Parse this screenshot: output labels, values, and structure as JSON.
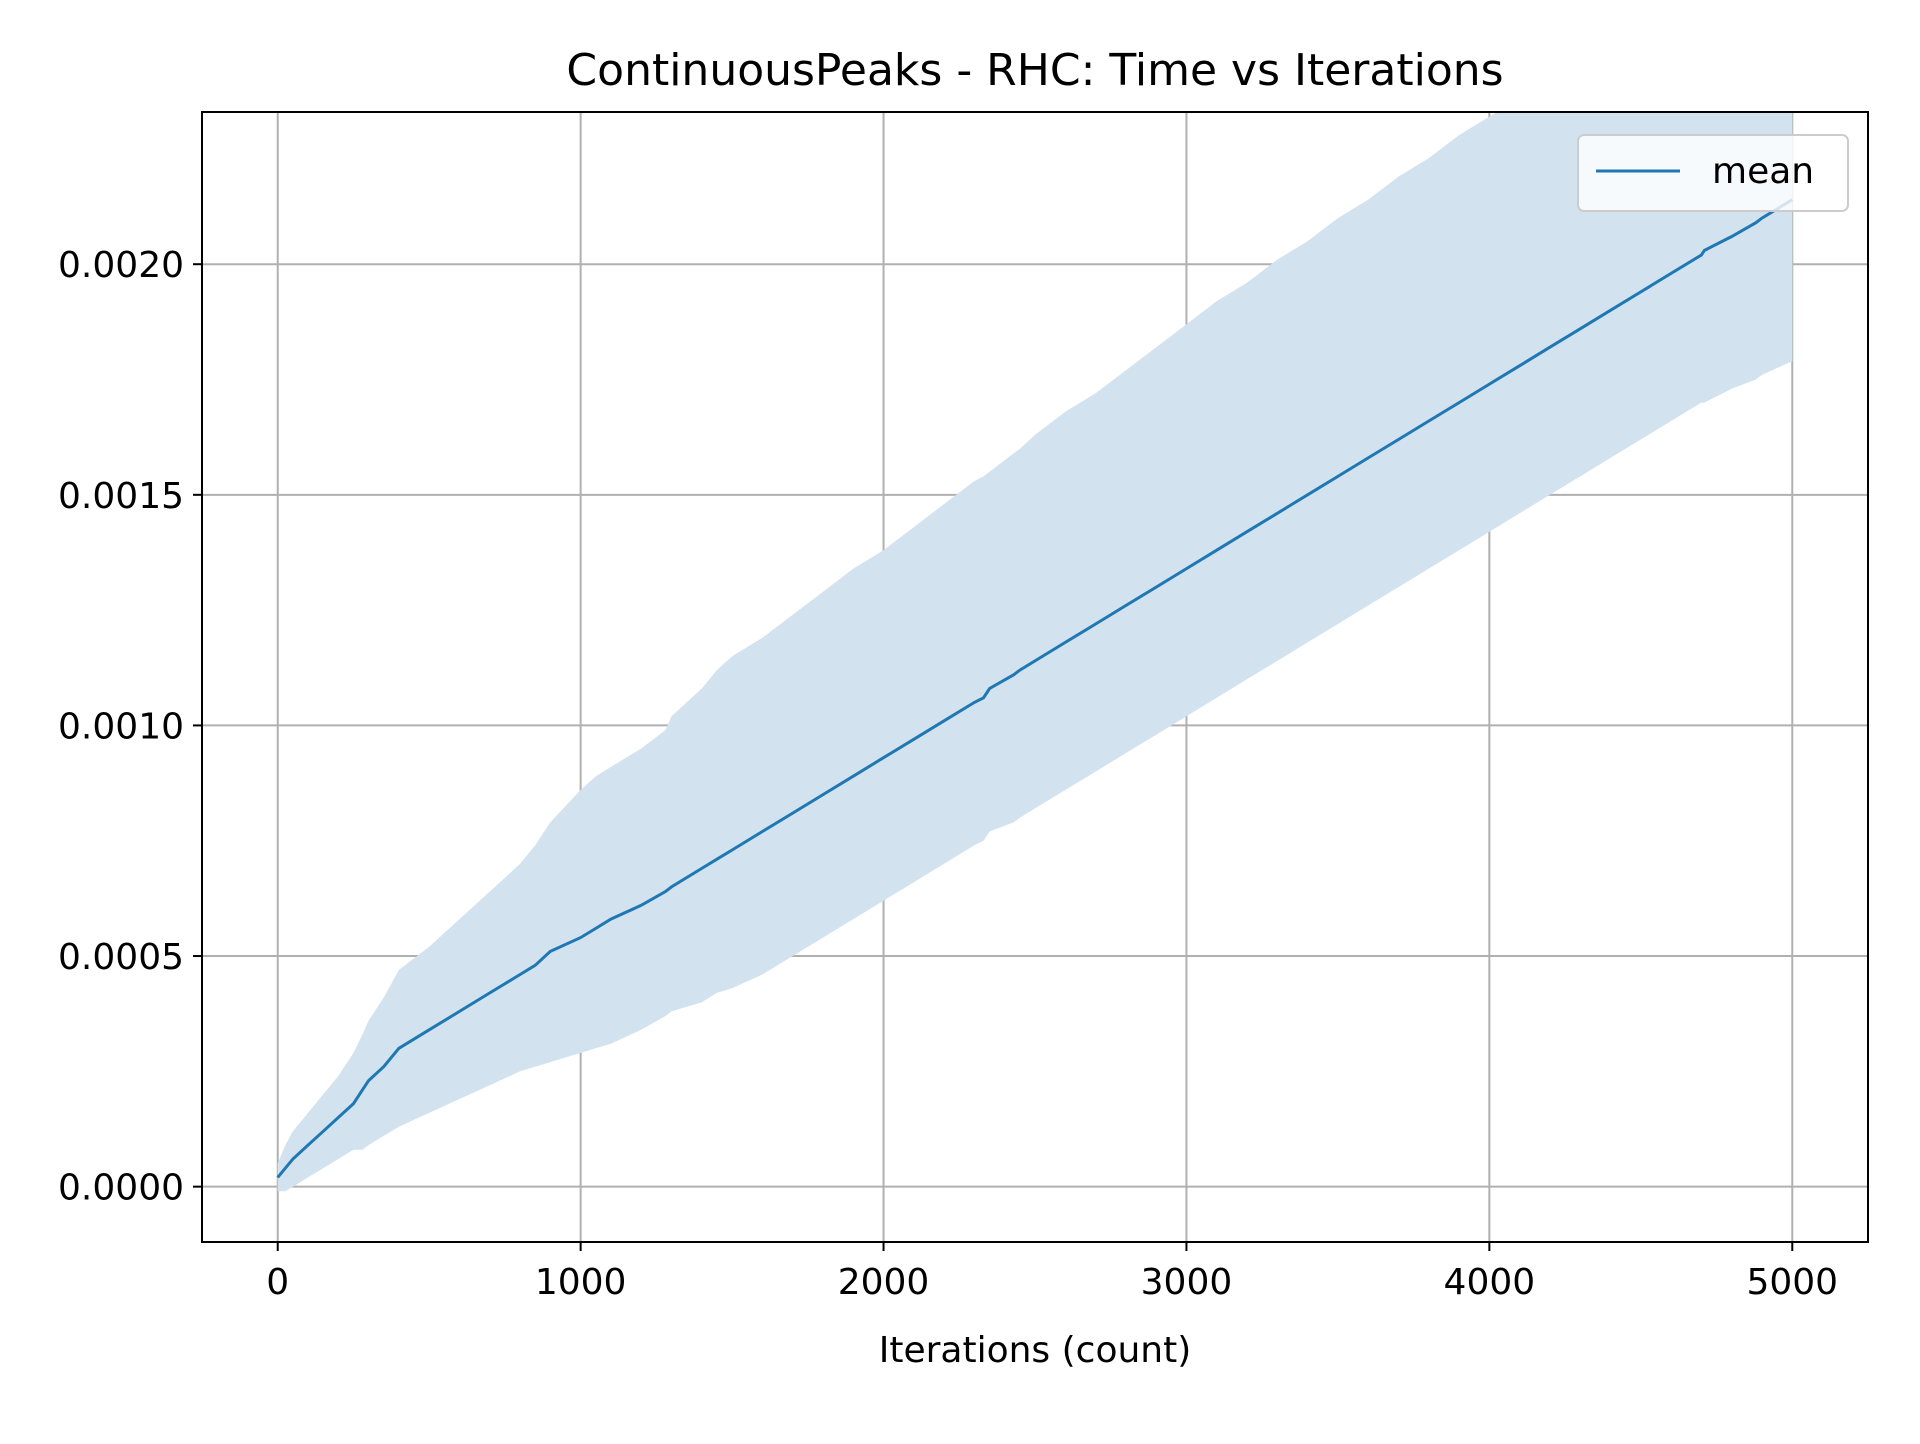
{
  "chart_data": {
    "type": "line",
    "title": "ContinuousPeaks - RHC: Time vs Iterations",
    "xlabel": "Iterations (count)",
    "ylabel": "",
    "xlim": [
      -250,
      5250
    ],
    "ylim": [
      -0.00012,
      0.00233
    ],
    "x_ticks": [
      0,
      1000,
      2000,
      3000,
      4000,
      5000
    ],
    "x_tick_labels": [
      "0",
      "1000",
      "2000",
      "3000",
      "4000",
      "5000"
    ],
    "y_ticks": [
      0.0,
      0.0005,
      0.001,
      0.0015,
      0.002
    ],
    "y_tick_labels": [
      "0.0000",
      "0.0005",
      "0.0010",
      "0.0015",
      "0.0020"
    ],
    "grid": true,
    "legend": {
      "position": "upper right",
      "entries": [
        "mean"
      ]
    },
    "colors": {
      "line": "#1f77b4",
      "band": "#d2e3ef",
      "grid": "#b0b0b0"
    },
    "series": [
      {
        "name": "mean",
        "x": [
          0,
          25,
          50,
          100,
          150,
          200,
          250,
          280,
          300,
          350,
          400,
          500,
          600,
          700,
          800,
          850,
          900,
          1000,
          1050,
          1100,
          1200,
          1280,
          1300,
          1400,
          1450,
          1500,
          1600,
          1700,
          1800,
          1900,
          2000,
          2100,
          2200,
          2300,
          2330,
          2350,
          2430,
          2450,
          2500,
          2600,
          2700,
          2800,
          2900,
          3000,
          3100,
          3200,
          3300,
          3350,
          3400,
          3500,
          3600,
          3700,
          3800,
          3900,
          4000,
          4100,
          4200,
          4300,
          4400,
          4500,
          4600,
          4700,
          4710,
          4800,
          4880,
          4900,
          5000
        ],
        "y": [
          2e-05,
          4e-05,
          6e-05,
          9e-05,
          0.00012,
          0.00015,
          0.00018,
          0.00021,
          0.00023,
          0.00026,
          0.0003,
          0.00034,
          0.00038,
          0.00042,
          0.00046,
          0.00048,
          0.00051,
          0.00054,
          0.00056,
          0.00058,
          0.00061,
          0.00064,
          0.00065,
          0.00069,
          0.00071,
          0.00073,
          0.00077,
          0.00081,
          0.00085,
          0.00089,
          0.00093,
          0.00097,
          0.00101,
          0.00105,
          0.00106,
          0.00108,
          0.00111,
          0.00112,
          0.00114,
          0.00118,
          0.00122,
          0.00126,
          0.0013,
          0.00134,
          0.00138,
          0.00142,
          0.00146,
          0.00148,
          0.0015,
          0.00154,
          0.00158,
          0.00162,
          0.00166,
          0.0017,
          0.00174,
          0.00178,
          0.00182,
          0.00186,
          0.0019,
          0.00194,
          0.00198,
          0.00202,
          0.00203,
          0.00206,
          0.00209,
          0.0021,
          0.00214
        ]
      }
    ],
    "band": {
      "x": [
        0,
        25,
        50,
        100,
        150,
        200,
        250,
        280,
        300,
        350,
        400,
        500,
        600,
        700,
        800,
        850,
        900,
        1000,
        1050,
        1100,
        1200,
        1280,
        1300,
        1400,
        1450,
        1500,
        1600,
        1700,
        1800,
        1900,
        2000,
        2100,
        2200,
        2300,
        2330,
        2350,
        2430,
        2450,
        2500,
        2600,
        2700,
        2800,
        2900,
        3000,
        3100,
        3200,
        3300,
        3350,
        3400,
        3500,
        3600,
        3700,
        3800,
        3900,
        4000,
        4100,
        4200,
        4300,
        4400,
        4500,
        4600,
        4700,
        4710,
        4800,
        4880,
        4900,
        5000
      ],
      "upper": [
        5e-05,
        9e-05,
        0.00012,
        0.00016,
        0.0002,
        0.00024,
        0.00029,
        0.00033,
        0.00036,
        0.00041,
        0.00047,
        0.00052,
        0.00058,
        0.00064,
        0.0007,
        0.00074,
        0.00079,
        0.00086,
        0.00089,
        0.00091,
        0.00095,
        0.00099,
        0.00102,
        0.00108,
        0.00112,
        0.00115,
        0.00119,
        0.00124,
        0.00129,
        0.00134,
        0.00138,
        0.00143,
        0.00148,
        0.00153,
        0.00154,
        0.00155,
        0.00159,
        0.0016,
        0.00163,
        0.00168,
        0.00172,
        0.00177,
        0.00182,
        0.00187,
        0.00192,
        0.00196,
        0.00201,
        0.00203,
        0.00205,
        0.0021,
        0.00214,
        0.00219,
        0.00223,
        0.00228,
        0.00232,
        0.00236,
        0.0024,
        0.00244,
        0.00248,
        0.00252,
        0.00256,
        0.0026,
        0.00261,
        0.00264,
        0.00267,
        0.00268,
        0.00272
      ],
      "lower": [
        -1e-05,
        -1e-05,
        0.0,
        2e-05,
        4e-05,
        6e-05,
        8e-05,
        8e-05,
        9e-05,
        0.00011,
        0.00013,
        0.00016,
        0.00019,
        0.00022,
        0.00025,
        0.00026,
        0.00027,
        0.00029,
        0.0003,
        0.00031,
        0.00034,
        0.00037,
        0.00038,
        0.0004,
        0.00042,
        0.00043,
        0.00046,
        0.0005,
        0.00054,
        0.00058,
        0.00062,
        0.00066,
        0.0007,
        0.00074,
        0.00075,
        0.00077,
        0.00079,
        0.0008,
        0.00082,
        0.00086,
        0.0009,
        0.00094,
        0.00098,
        0.00102,
        0.00106,
        0.0011,
        0.00114,
        0.00116,
        0.00118,
        0.00122,
        0.00126,
        0.0013,
        0.00134,
        0.00138,
        0.00142,
        0.00146,
        0.0015,
        0.00154,
        0.00158,
        0.00162,
        0.00166,
        0.0017,
        0.0017,
        0.00173,
        0.00175,
        0.00176,
        0.00179
      ]
    }
  }
}
